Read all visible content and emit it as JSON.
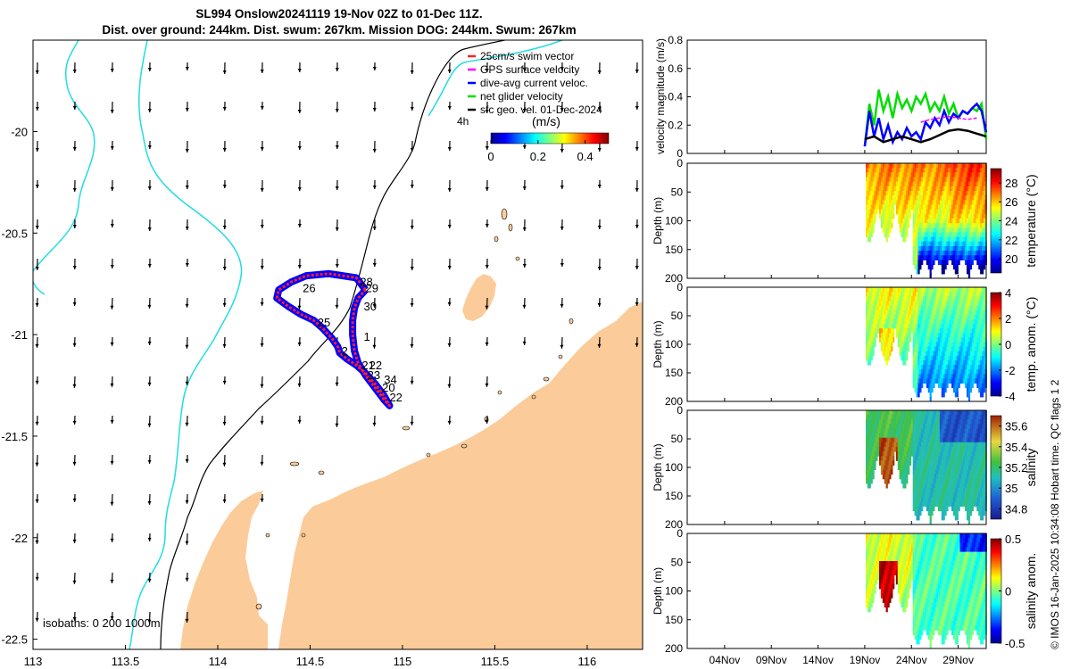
{
  "figure": {
    "title_line1": "SL994 Onslow20241119 19-Nov 02Z to 01-Dec 11Z.",
    "title_line2": "Dist. over ground: 244km. Dist. swum: 267km. Mission DOG: 244km. Swum: 267km",
    "side_caption": "© IMOS 16-Jan-2025 10:34:08 Hobart time. QC flags 1  2"
  },
  "colors": {
    "land": "#fbcb99",
    "isobath200": "#000000",
    "isobath1000": "#22dddd",
    "swim": "#ff2020",
    "gps": "#ff00ff",
    "dive_avg": "#0000ff",
    "net": "#00dd00",
    "sfc_geo": "#000000"
  },
  "chart_data": [
    {
      "type": "map",
      "name": "glider track map",
      "xlim": [
        113,
        116.3
      ],
      "ylim": [
        -22.55,
        -19.55
      ],
      "x_ticks": [
        113,
        113.5,
        114,
        114.5,
        115,
        115.5,
        116
      ],
      "x_tick_labels": [
        "113",
        "113.5",
        "114",
        "114.5",
        "115",
        "115.5",
        "116"
      ],
      "y_ticks": [
        -20,
        -20.5,
        -21,
        -21.5,
        -22,
        -22.5
      ],
      "y_tick_labels": [
        "-20",
        "-20.5",
        "-21",
        "-21.5",
        "-22",
        "-22.5"
      ],
      "legend": [
        {
          "label": "25cm/s swim vector",
          "color_key": "swim"
        },
        {
          "label": "GPS surface velocity",
          "color_key": "gps"
        },
        {
          "label": "dive-avg current veloc.",
          "color_key": "dive_avg"
        },
        {
          "label": "net glider velocity",
          "color_key": "net"
        },
        {
          "label": "sfc geo. vel. 01-Dec-2024",
          "color_key": "sfc_geo"
        }
      ],
      "legend_suffix": "4h",
      "colorbar": {
        "label": "(m/s)",
        "range": [
          0,
          0.5
        ],
        "ticks": [
          0,
          0.2,
          0.4
        ],
        "tick_labels": [
          "0",
          "0.2",
          "0.4"
        ]
      },
      "isobath_note": "isobaths: 0   200  1000m",
      "track": [
        [
          114.8,
          -20.78
        ],
        [
          114.75,
          -20.72
        ],
        [
          114.6,
          -20.7
        ],
        [
          114.48,
          -20.71
        ],
        [
          114.4,
          -20.74
        ],
        [
          114.33,
          -20.78
        ],
        [
          114.32,
          -20.82
        ],
        [
          114.38,
          -20.86
        ],
        [
          114.45,
          -20.9
        ],
        [
          114.52,
          -20.93
        ],
        [
          114.57,
          -20.97
        ],
        [
          114.62,
          -21.02
        ],
        [
          114.65,
          -21.06
        ],
        [
          114.66,
          -21.09
        ],
        [
          114.7,
          -21.12
        ],
        [
          114.75,
          -21.15
        ],
        [
          114.8,
          -21.19
        ],
        [
          114.85,
          -21.24
        ],
        [
          114.9,
          -21.3
        ],
        [
          114.93,
          -21.35
        ],
        [
          114.9,
          -21.32
        ],
        [
          114.85,
          -21.26
        ],
        [
          114.8,
          -21.2
        ],
        [
          114.76,
          -21.14
        ],
        [
          114.74,
          -21.08
        ],
        [
          114.73,
          -21.0
        ],
        [
          114.73,
          -20.93
        ],
        [
          114.74,
          -20.87
        ],
        [
          114.76,
          -20.82
        ],
        [
          114.8,
          -20.78
        ]
      ],
      "day_labels": [
        {
          "text": "28",
          "lon": 114.77,
          "lat": -20.76
        },
        {
          "text": "29",
          "lon": 114.8,
          "lat": -20.79
        },
        {
          "text": "26",
          "lon": 114.46,
          "lat": -20.79
        },
        {
          "text": "30",
          "lon": 114.79,
          "lat": -20.88
        },
        {
          "text": "25",
          "lon": 114.54,
          "lat": -20.96
        },
        {
          "text": "1",
          "lon": 114.79,
          "lat": -21.03
        },
        {
          "text": "2",
          "lon": 114.67,
          "lat": -21.1
        },
        {
          "text": "21",
          "lon": 114.78,
          "lat": -21.17
        },
        {
          "text": "22",
          "lon": 114.82,
          "lat": -21.17
        },
        {
          "text": "23",
          "lon": 114.81,
          "lat": -21.22
        },
        {
          "text": "34",
          "lon": 114.9,
          "lat": -21.24
        },
        {
          "text": "20",
          "lon": 114.89,
          "lat": -21.28
        },
        {
          "text": "22",
          "lon": 114.93,
          "lat": -21.33
        }
      ]
    },
    {
      "type": "line",
      "name": "velocity magnitude",
      "ylabel": "velocity magnitude (m/s)",
      "ylim": [
        0,
        0.8
      ],
      "y_ticks": [
        0,
        0.2,
        0.4,
        0.6,
        0.8
      ],
      "y_tick_labels": [
        "0",
        "0.2",
        "0.4",
        "0.6",
        "0.8"
      ],
      "x_range_days": [
        0,
        32
      ],
      "series": [
        {
          "name": "net glider velocity",
          "color_key": "net",
          "x": [
            19,
            19.5,
            20,
            20.5,
            21,
            21.5,
            22,
            22.5,
            23,
            23.5,
            24,
            24.5,
            25,
            25.5,
            26,
            26.5,
            27,
            27.5,
            28,
            28.5,
            29,
            29.5,
            30,
            30.5,
            31,
            31.5,
            32
          ],
          "values": [
            0.05,
            0.35,
            0.2,
            0.45,
            0.3,
            0.4,
            0.25,
            0.42,
            0.32,
            0.38,
            0.3,
            0.4,
            0.35,
            0.42,
            0.3,
            0.36,
            0.3,
            0.4,
            0.28,
            0.35,
            0.25,
            0.3,
            0.28,
            0.32,
            0.3,
            0.35,
            0.1
          ]
        },
        {
          "name": "dive-avg current veloc.",
          "color_key": "dive_avg",
          "x": [
            19,
            19.5,
            20,
            20.5,
            21,
            21.5,
            22,
            22.5,
            23,
            23.5,
            24,
            24.5,
            25,
            25.5,
            26,
            26.5,
            27,
            27.5,
            28,
            28.5,
            29,
            29.5,
            30,
            30.5,
            31,
            31.5,
            32
          ],
          "values": [
            0.05,
            0.3,
            0.12,
            0.25,
            0.1,
            0.2,
            0.08,
            0.15,
            0.1,
            0.18,
            0.12,
            0.15,
            0.1,
            0.22,
            0.18,
            0.25,
            0.2,
            0.3,
            0.22,
            0.28,
            0.25,
            0.3,
            0.28,
            0.32,
            0.35,
            0.3,
            0.15
          ]
        },
        {
          "name": "GPS surface velocity",
          "color_key": "gps",
          "x": [
            25,
            26,
            27,
            28,
            29,
            30,
            31
          ],
          "values": [
            0.22,
            0.24,
            0.25,
            0.26,
            0.25,
            0.24,
            0.25
          ]
        },
        {
          "name": "sfc geo. vel.",
          "color_key": "sfc_geo",
          "x": [
            19,
            20,
            21,
            22,
            23,
            24,
            25,
            26,
            27,
            28,
            29,
            30,
            31,
            32
          ],
          "values": [
            0.1,
            0.12,
            0.08,
            0.1,
            0.12,
            0.1,
            0.08,
            0.1,
            0.13,
            0.16,
            0.17,
            0.16,
            0.14,
            0.12
          ]
        }
      ]
    },
    {
      "type": "heatmap",
      "name": "temperature",
      "ylabel": "Depth (m)",
      "cbar_label": "temperature (°C)",
      "ylim": [
        200,
        0
      ],
      "y_ticks": [
        0,
        50,
        100,
        150,
        200
      ],
      "y_tick_labels": [
        "0",
        "50",
        "100",
        "150",
        "200"
      ],
      "clim": [
        18.5,
        29.5
      ],
      "cbar_ticks": [
        20,
        22,
        24,
        26,
        28
      ],
      "cbar_tick_labels": [
        "20",
        "22",
        "24",
        "26",
        "28"
      ]
    },
    {
      "type": "heatmap",
      "name": "temperature anomaly",
      "ylabel": "Depth (m)",
      "cbar_label": "temp. anom. (°C)",
      "ylim": [
        200,
        0
      ],
      "y_ticks": [
        0,
        50,
        100,
        150,
        200
      ],
      "y_tick_labels": [
        "0",
        "50",
        "100",
        "150",
        "200"
      ],
      "clim": [
        -4,
        4
      ],
      "cbar_ticks": [
        -4,
        -2,
        0,
        2,
        4
      ],
      "cbar_tick_labels": [
        "-4",
        "-2",
        "0",
        "2",
        "4"
      ]
    },
    {
      "type": "heatmap",
      "name": "salinity",
      "ylabel": "Depth (m)",
      "cbar_label": "salinity",
      "ylim": [
        200,
        0
      ],
      "y_ticks": [
        0,
        50,
        100,
        150,
        200
      ],
      "y_tick_labels": [
        "0",
        "50",
        "100",
        "150",
        "200"
      ],
      "clim": [
        34.7,
        35.7
      ],
      "cbar_ticks": [
        34.8,
        35,
        35.2,
        35.4,
        35.6
      ],
      "cbar_tick_labels": [
        "34.8",
        "35",
        "35.2",
        "35.4",
        "35.6"
      ]
    },
    {
      "type": "heatmap",
      "name": "salinity anomaly",
      "ylabel": "Depth (m)",
      "cbar_label": "salinity anom.",
      "ylim": [
        200,
        0
      ],
      "y_ticks": [
        0,
        50,
        100,
        150,
        200
      ],
      "y_tick_labels": [
        "0",
        "50",
        "100",
        "150",
        "200"
      ],
      "clim": [
        -0.5,
        0.5
      ],
      "cbar_ticks": [
        -0.5,
        0,
        0.5
      ],
      "cbar_tick_labels": [
        "-0.5",
        "0",
        "0.5"
      ]
    }
  ],
  "time_axis": {
    "x_ticks": [
      4,
      9,
      14,
      19,
      24,
      29
    ],
    "x_tick_labels": [
      "04Nov",
      "09Nov",
      "14Nov",
      "19Nov",
      "24Nov",
      "29Nov"
    ]
  }
}
